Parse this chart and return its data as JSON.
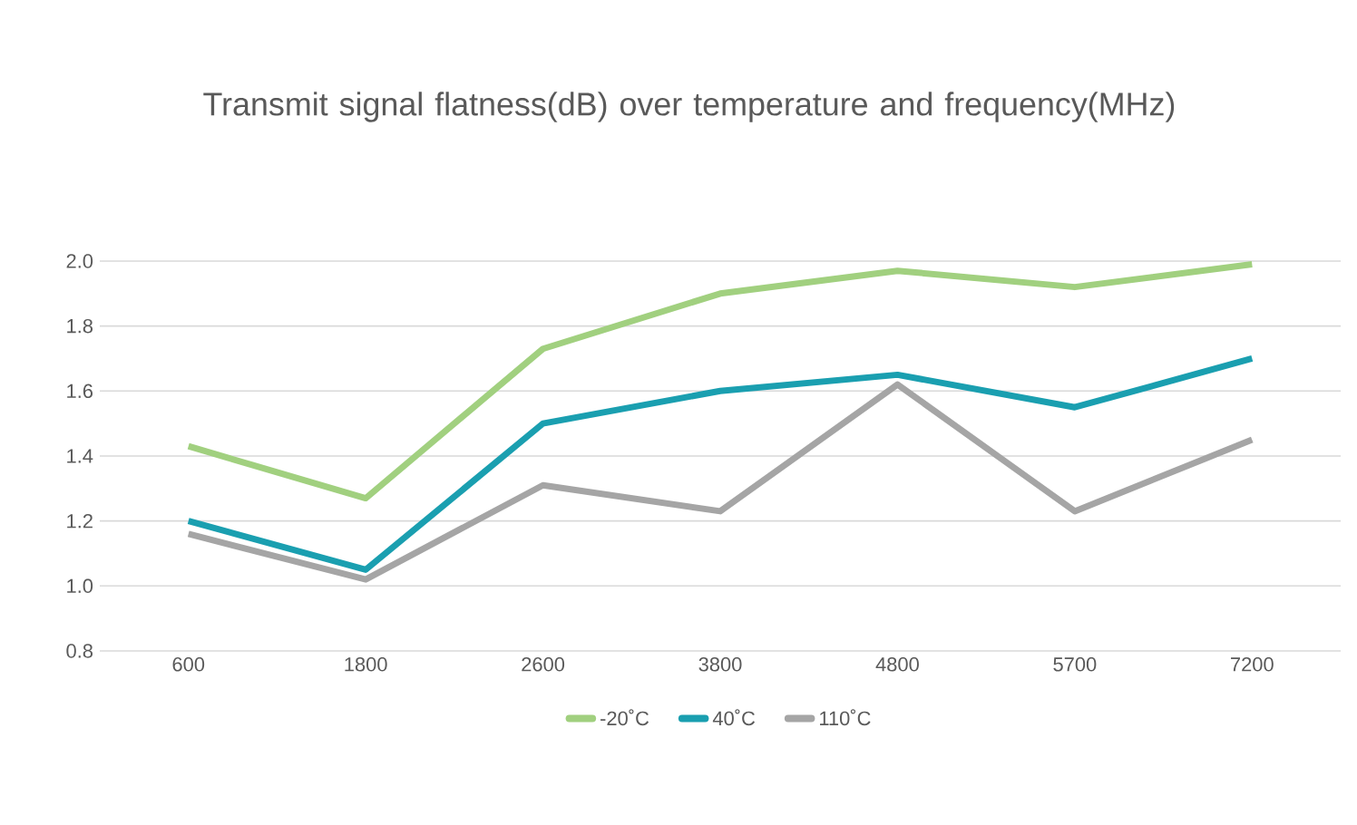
{
  "chart_data": {
    "type": "line",
    "title": "Transmit signal flatness(dB) over temperature and frequency(MHz)",
    "categories": [
      "600",
      "1800",
      "2600",
      "3800",
      "4800",
      "5700",
      "7200"
    ],
    "series": [
      {
        "name": "-20˚C",
        "color": "#a1d07f",
        "values": [
          1.43,
          1.27,
          1.73,
          1.9,
          1.97,
          1.92,
          1.99
        ]
      },
      {
        "name": "40˚C",
        "color": "#1a9fb0",
        "values": [
          1.2,
          1.05,
          1.5,
          1.6,
          1.65,
          1.55,
          1.7
        ]
      },
      {
        "name": "110˚C",
        "color": "#a5a5a5",
        "values": [
          1.16,
          1.02,
          1.31,
          1.23,
          1.62,
          1.23,
          1.45
        ]
      }
    ],
    "ylim": [
      0.8,
      2.0
    ],
    "yticks": [
      0.8,
      {
        "value": 1.0,
        "label": "1.0"
      },
      1.2,
      1.4,
      1.6,
      1.8,
      {
        "value": 2.0,
        "label": "2.0"
      }
    ],
    "grid": "y",
    "legend": "bottom",
    "marker": "none",
    "line_style": "solid"
  }
}
